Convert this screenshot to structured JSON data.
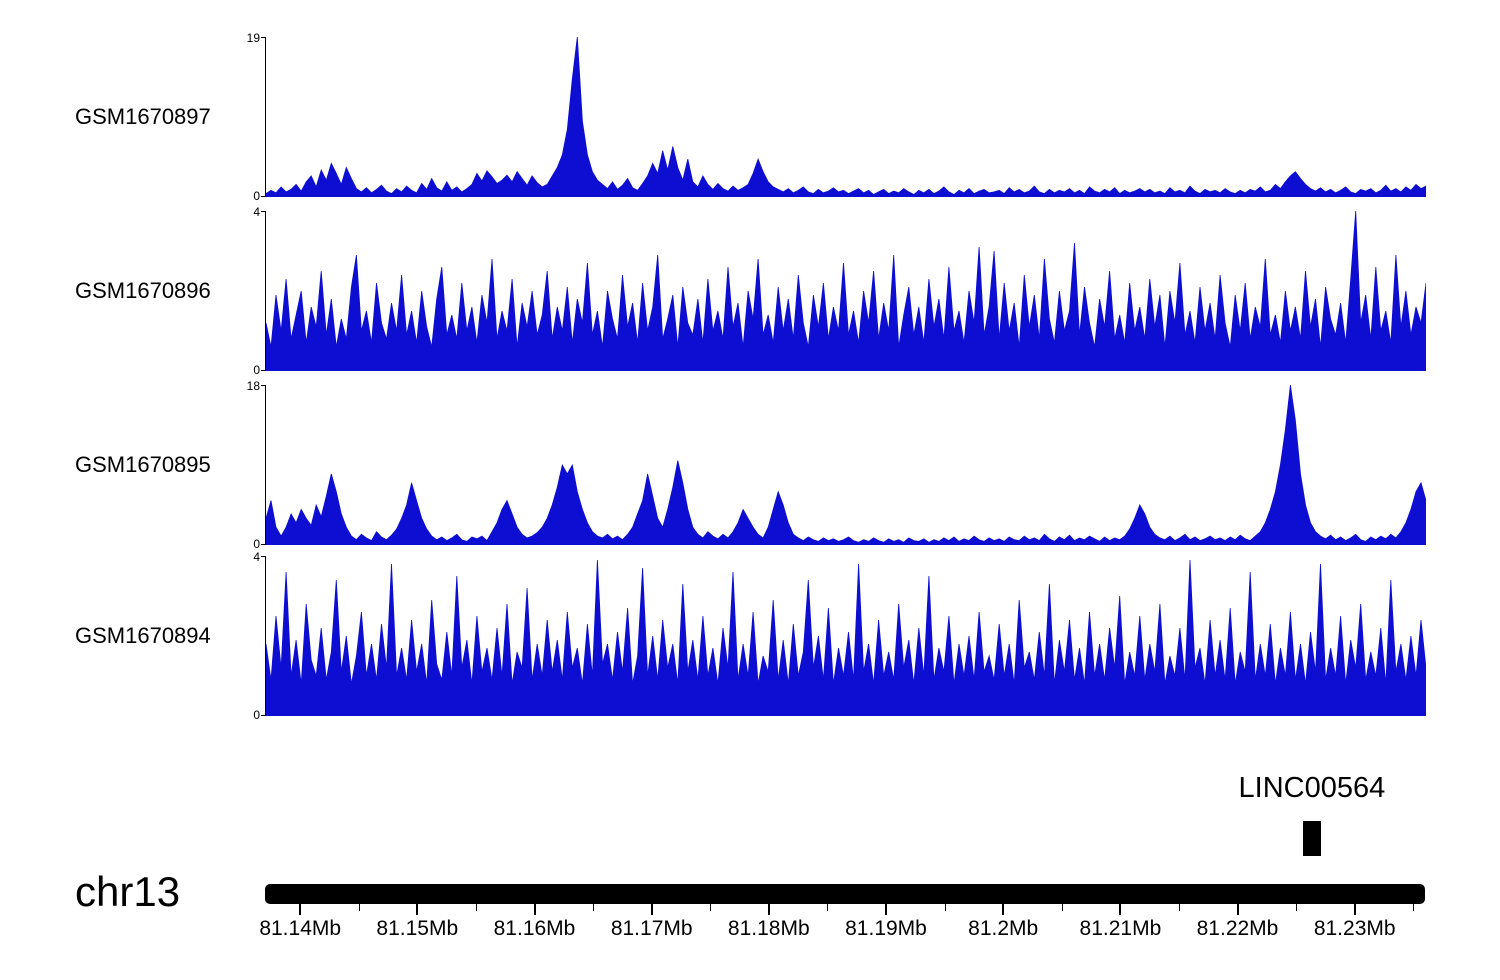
{
  "colors": {
    "signal": "#0d0ed2",
    "annotation": "#000000",
    "ideogram": "#000000",
    "text": "#000000",
    "background": "#ffffff"
  },
  "chart_data": {
    "type": "area",
    "chromosome": "chr13",
    "x_unit": "Mb",
    "x_range_mb": [
      81.137,
      81.236
    ],
    "grid": false,
    "legend": "none",
    "x_ticks": [
      {
        "value": 81.14,
        "label": "81.14Mb"
      },
      {
        "value": 81.15,
        "label": "81.15Mb"
      },
      {
        "value": 81.16,
        "label": "81.16Mb"
      },
      {
        "value": 81.17,
        "label": "81.17Mb"
      },
      {
        "value": 81.18,
        "label": "81.18Mb"
      },
      {
        "value": 81.19,
        "label": "81.19Mb"
      },
      {
        "value": 81.2,
        "label": "81.2Mb"
      },
      {
        "value": 81.21,
        "label": "81.21Mb"
      },
      {
        "value": 81.22,
        "label": "81.22Mb"
      },
      {
        "value": 81.23,
        "label": "81.23Mb"
      }
    ],
    "minor_tick_step_mb": 0.005,
    "gene_annotation": {
      "label": "LINC00564",
      "start_mb": 81.2256,
      "end_mb": 81.2271
    },
    "tracks": [
      {
        "label": "GSM1670897",
        "ymin": 0,
        "ymax": 19,
        "ymin_label": "0",
        "ymax_label": "19",
        "values": [
          0.4,
          0.8,
          0.5,
          1.2,
          0.6,
          0.9,
          1.5,
          0.7,
          1.8,
          2.5,
          1.2,
          3.2,
          2.0,
          4.0,
          2.8,
          1.5,
          3.5,
          2.2,
          1.0,
          0.6,
          1.1,
          0.5,
          0.9,
          1.4,
          0.7,
          0.4,
          1.0,
          0.6,
          1.3,
          0.8,
          0.5,
          1.6,
          0.9,
          2.2,
          1.1,
          0.7,
          1.8,
          0.8,
          1.2,
          0.6,
          1.0,
          1.5,
          2.8,
          1.9,
          3.1,
          2.4,
          1.6,
          2.0,
          2.6,
          1.8,
          3.0,
          2.2,
          1.4,
          2.5,
          1.7,
          1.2,
          1.5,
          2.5,
          3.5,
          5.0,
          8.0,
          14.0,
          19.0,
          9.0,
          5.0,
          3.0,
          2.0,
          1.5,
          1.0,
          1.8,
          0.9,
          1.4,
          2.2,
          1.1,
          0.8,
          1.6,
          2.5,
          4.0,
          2.8,
          5.5,
          3.2,
          6.0,
          3.5,
          2.0,
          4.5,
          1.8,
          1.2,
          2.5,
          1.5,
          0.9,
          1.6,
          1.0,
          0.7,
          1.3,
          0.8,
          1.1,
          1.5,
          2.8,
          4.5,
          3.0,
          1.8,
          1.2,
          0.9,
          0.6,
          1.0,
          0.5,
          0.8,
          1.2,
          0.6,
          0.4,
          0.9,
          0.5,
          0.7,
          1.1,
          0.6,
          0.8,
          0.4,
          0.7,
          1.0,
          0.5,
          0.8,
          0.3,
          0.6,
          0.9,
          0.4,
          0.7,
          0.5,
          1.0,
          0.6,
          0.3,
          0.8,
          0.5,
          0.9,
          0.4,
          0.7,
          1.2,
          0.6,
          0.3,
          0.8,
          0.5,
          1.0,
          0.4,
          0.7,
          0.9,
          0.5,
          0.6,
          0.8,
          0.4,
          1.1,
          0.6,
          0.9,
          0.5,
          0.7,
          1.3,
          0.6,
          0.4,
          0.9,
          0.5,
          0.8,
          0.6,
          1.0,
          0.5,
          0.8,
          0.4,
          1.2,
          0.7,
          0.5,
          0.9,
          0.6,
          1.1,
          0.4,
          0.8,
          0.5,
          0.7,
          1.0,
          0.6,
          0.9,
          0.5,
          0.7,
          0.4,
          1.1,
          0.6,
          0.8,
          0.5,
          1.3,
          0.7,
          0.4,
          0.9,
          0.6,
          0.8,
          0.5,
          1.0,
          0.6,
          0.4,
          0.8,
          0.5,
          0.9,
          0.7,
          1.2,
          0.6,
          0.8,
          1.5,
          1.0,
          1.8,
          2.5,
          3.0,
          2.2,
          1.5,
          1.0,
          0.7,
          1.1,
          0.6,
          0.9,
          0.5,
          0.8,
          1.2,
          0.6,
          0.4,
          0.9,
          0.7,
          1.0,
          0.5,
          0.8,
          1.4,
          0.7,
          1.0,
          0.6,
          1.2,
          0.8,
          1.5,
          1.0,
          1.3
        ]
      },
      {
        "label": "GSM1670896",
        "ymin": 0,
        "ymax": 4,
        "ymin_label": "0",
        "ymax_label": "4",
        "values": [
          1.2,
          0.6,
          1.9,
          1.0,
          2.3,
          0.8,
          1.4,
          2.0,
          0.7,
          1.6,
          1.1,
          2.5,
          0.9,
          1.8,
          0.6,
          1.3,
          0.8,
          2.1,
          2.9,
          1.0,
          1.5,
          0.7,
          2.2,
          1.2,
          0.8,
          1.7,
          1.0,
          2.4,
          0.9,
          1.5,
          0.7,
          2.0,
          1.1,
          0.6,
          1.8,
          2.6,
          0.9,
          1.4,
          0.8,
          2.2,
          1.0,
          1.6,
          0.7,
          1.9,
          1.2,
          2.8,
          0.8,
          1.5,
          1.0,
          2.3,
          0.6,
          1.7,
          1.1,
          2.0,
          0.9,
          1.4,
          2.5,
          0.8,
          1.6,
          1.0,
          2.1,
          0.7,
          1.8,
          1.2,
          2.7,
          0.9,
          1.5,
          0.6,
          2.0,
          1.3,
          0.8,
          2.4,
          1.1,
          1.7,
          0.7,
          2.2,
          1.0,
          1.6,
          2.9,
          0.8,
          1.3,
          1.9,
          0.6,
          2.1,
          1.2,
          0.9,
          1.8,
          0.7,
          2.3,
          1.0,
          1.5,
          0.8,
          2.6,
          1.1,
          1.7,
          0.6,
          2.0,
          1.3,
          2.8,
          0.9,
          1.4,
          0.7,
          2.1,
          1.0,
          1.8,
          0.8,
          2.4,
          1.2,
          0.6,
          1.9,
          1.1,
          2.2,
          0.8,
          1.6,
          1.0,
          2.7,
          0.9,
          1.5,
          0.7,
          2.0,
          1.2,
          2.5,
          0.8,
          1.7,
          1.0,
          2.9,
          0.6,
          1.4,
          2.1,
          0.9,
          1.6,
          0.7,
          2.3,
          1.1,
          1.8,
          0.8,
          2.6,
          1.0,
          1.5,
          0.7,
          2.0,
          1.2,
          3.1,
          0.9,
          1.6,
          3.0,
          0.8,
          2.2,
          1.0,
          1.7,
          0.6,
          2.4,
          1.1,
          1.9,
          0.8,
          2.8,
          1.3,
          0.7,
          2.0,
          1.0,
          1.5,
          3.2,
          0.9,
          2.1,
          1.2,
          0.6,
          1.8,
          1.1,
          2.5,
          0.8,
          1.4,
          0.7,
          2.2,
          1.0,
          1.6,
          0.8,
          2.3,
          1.1,
          1.9,
          0.6,
          2.0,
          1.2,
          2.7,
          0.9,
          1.5,
          0.7,
          2.1,
          1.0,
          1.7,
          0.8,
          2.4,
          1.2,
          0.6,
          1.9,
          1.0,
          2.2,
          0.8,
          1.6,
          1.1,
          2.8,
          0.9,
          1.4,
          0.7,
          2.0,
          1.0,
          1.6,
          0.8,
          2.5,
          1.1,
          1.8,
          0.6,
          2.1,
          1.3,
          0.9,
          1.7,
          0.7,
          2.3,
          4.0,
          1.2,
          1.9,
          0.8,
          2.6,
          1.0,
          1.5,
          0.7,
          2.9,
          1.1,
          2.0,
          0.9,
          1.6,
          1.2,
          2.2
        ]
      },
      {
        "label": "GSM1670895",
        "ymin": 0,
        "ymax": 18,
        "ymin_label": "0",
        "ymax_label": "18",
        "values": [
          3.0,
          5.0,
          2.0,
          1.0,
          2.0,
          3.5,
          2.5,
          4.0,
          3.0,
          2.2,
          4.5,
          3.2,
          5.5,
          8.0,
          6.0,
          3.5,
          2.0,
          1.0,
          0.6,
          1.2,
          0.8,
          0.5,
          1.5,
          0.9,
          0.6,
          1.1,
          1.8,
          3.0,
          4.5,
          7.0,
          5.0,
          3.0,
          1.8,
          1.0,
          0.6,
          0.9,
          0.5,
          0.8,
          1.2,
          0.6,
          0.4,
          0.9,
          0.7,
          1.0,
          0.5,
          1.5,
          2.5,
          4.0,
          5.0,
          3.5,
          2.0,
          1.2,
          0.8,
          1.0,
          1.4,
          2.0,
          3.0,
          4.5,
          6.5,
          9.0,
          8.0,
          9.0,
          6.0,
          4.0,
          2.5,
          1.5,
          1.0,
          0.8,
          1.2,
          0.7,
          1.0,
          0.6,
          1.2,
          2.0,
          3.5,
          5.0,
          8.0,
          5.5,
          3.0,
          2.0,
          4.0,
          6.5,
          9.5,
          7.0,
          4.0,
          2.0,
          1.2,
          0.8,
          1.5,
          1.0,
          0.7,
          1.2,
          0.8,
          1.5,
          2.5,
          4.0,
          3.0,
          2.0,
          1.2,
          0.8,
          2.0,
          4.0,
          6.0,
          4.5,
          2.5,
          1.2,
          0.8,
          0.5,
          0.9,
          0.6,
          0.4,
          0.8,
          0.5,
          0.7,
          0.4,
          0.6,
          0.9,
          0.5,
          0.3,
          0.6,
          0.4,
          0.8,
          0.5,
          0.3,
          0.7,
          0.4,
          0.6,
          0.3,
          0.8,
          0.5,
          0.4,
          0.7,
          0.3,
          0.6,
          0.4,
          0.8,
          0.5,
          0.9,
          0.4,
          0.7,
          0.5,
          1.0,
          0.6,
          0.4,
          0.8,
          0.5,
          0.7,
          0.4,
          0.9,
          0.6,
          0.5,
          1.0,
          0.6,
          0.8,
          0.5,
          1.2,
          0.7,
          0.4,
          0.9,
          0.6,
          1.1,
          0.5,
          0.8,
          0.6,
          1.0,
          0.7,
          0.4,
          0.9,
          0.5,
          0.8,
          0.6,
          1.0,
          1.8,
          3.0,
          4.5,
          3.5,
          2.0,
          1.2,
          0.8,
          0.6,
          1.0,
          0.5,
          0.8,
          1.2,
          0.6,
          0.9,
          0.5,
          0.7,
          1.0,
          0.6,
          0.8,
          0.5,
          0.9,
          0.6,
          1.1,
          0.7,
          0.5,
          1.0,
          1.5,
          2.5,
          4.0,
          6.0,
          9.0,
          13.0,
          18.0,
          14.0,
          8.0,
          4.5,
          2.5,
          1.5,
          1.0,
          0.7,
          1.1,
          0.6,
          0.9,
          0.5,
          0.8,
          1.2,
          0.6,
          0.4,
          0.9,
          0.6,
          1.0,
          0.7,
          1.2,
          0.8,
          1.5,
          2.5,
          4.0,
          6.0,
          7.0,
          5.0
        ]
      },
      {
        "label": "GSM1670894",
        "ymin": 0,
        "ymax": 4,
        "ymin_label": "0",
        "ymax_label": "4",
        "values": [
          1.8,
          0.9,
          2.5,
          1.2,
          3.6,
          1.0,
          1.9,
          0.8,
          2.8,
          1.4,
          1.0,
          2.2,
          0.9,
          1.6,
          3.4,
          1.1,
          2.0,
          0.8,
          1.5,
          2.6,
          1.0,
          1.8,
          0.9,
          2.3,
          1.2,
          3.8,
          1.0,
          1.7,
          0.9,
          2.4,
          1.1,
          1.8,
          0.8,
          2.9,
          1.3,
          0.9,
          2.1,
          1.0,
          3.5,
          1.2,
          1.9,
          0.8,
          2.5,
          1.1,
          1.7,
          0.9,
          2.2,
          1.0,
          2.8,
          0.8,
          1.6,
          1.2,
          3.2,
          0.9,
          1.8,
          1.0,
          2.4,
          1.1,
          1.9,
          0.9,
          2.6,
          1.2,
          1.7,
          0.8,
          2.3,
          1.0,
          3.9,
          1.3,
          1.8,
          0.9,
          2.1,
          1.1,
          2.7,
          0.8,
          1.5,
          3.7,
          1.0,
          2.0,
          0.9,
          2.4,
          1.2,
          1.8,
          0.8,
          3.3,
          1.1,
          1.9,
          0.9,
          2.5,
          1.0,
          1.7,
          0.8,
          2.2,
          1.2,
          3.6,
          0.9,
          1.8,
          1.0,
          2.6,
          0.8,
          1.5,
          1.1,
          2.9,
          0.9,
          1.9,
          0.8,
          2.3,
          1.0,
          1.6,
          3.4,
          1.2,
          2.0,
          0.9,
          2.7,
          0.8,
          1.7,
          1.0,
          2.1,
          0.9,
          3.8,
          1.1,
          1.8,
          0.8,
          2.4,
          1.0,
          1.6,
          0.9,
          2.8,
          1.2,
          1.9,
          0.8,
          2.2,
          1.0,
          3.5,
          0.9,
          1.7,
          1.1,
          2.5,
          0.8,
          1.8,
          1.0,
          2.0,
          0.9,
          2.6,
          1.1,
          1.5,
          0.9,
          2.3,
          1.0,
          1.8,
          0.8,
          2.9,
          1.2,
          1.6,
          0.9,
          2.1,
          1.0,
          3.3,
          0.8,
          1.9,
          1.1,
          2.4,
          0.9,
          1.7,
          0.8,
          2.6,
          1.0,
          1.8,
          0.9,
          2.2,
          1.2,
          3.0,
          0.8,
          1.6,
          1.0,
          2.5,
          0.9,
          1.8,
          1.1,
          2.8,
          0.8,
          1.5,
          1.0,
          2.2,
          0.9,
          3.9,
          1.2,
          1.7,
          0.8,
          2.4,
          1.0,
          1.9,
          0.9,
          2.7,
          0.8,
          1.6,
          1.1,
          3.6,
          0.9,
          1.8,
          1.0,
          2.3,
          0.8,
          1.7,
          1.0,
          2.6,
          0.9,
          1.8,
          0.8,
          2.1,
          1.1,
          3.8,
          0.9,
          1.7,
          1.0,
          2.5,
          0.8,
          1.9,
          1.2,
          2.8,
          0.9,
          1.6,
          1.0,
          2.2,
          0.8,
          3.4,
          1.1,
          1.8,
          0.9,
          2.0,
          1.0,
          2.4,
          1.2
        ]
      }
    ]
  }
}
